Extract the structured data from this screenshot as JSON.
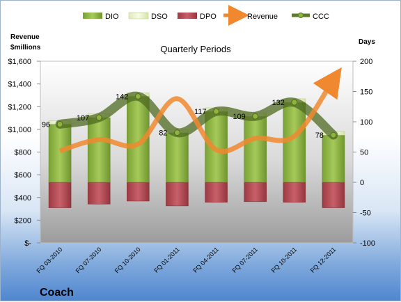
{
  "chart_data": {
    "type": "bar",
    "title": "Quarterly Periods",
    "company": "Coach",
    "y_left_label_line1": "Revenue",
    "y_left_label_line2": "$millions",
    "y_right_label": "Days",
    "y_left_range": [
      0,
      1600
    ],
    "y_right_range": [
      -100,
      200
    ],
    "y_left_ticks": [
      "$-",
      "$200",
      "$400",
      "$600",
      "$800",
      "$1,000",
      "$1,200",
      "$1,400",
      "$1,600"
    ],
    "y_right_ticks": [
      "-100",
      "-50",
      "0",
      "50",
      "100",
      "150",
      "200"
    ],
    "categories": [
      "FQ 03-2010",
      "FQ 07-2010",
      "FQ 10-2010",
      "FQ 01-2011",
      "FQ 04-2011",
      "FQ 07-2011",
      "FQ 10-2011",
      "FQ 12-2011"
    ],
    "series": [
      {
        "name": "DIO",
        "axis": "right",
        "values": [
          96,
          107,
          142,
          82,
          117,
          109,
          132,
          78
        ],
        "color": "#8fb43c"
      },
      {
        "name": "DSO",
        "axis": "right",
        "values": [
          6,
          6,
          6,
          6,
          6,
          6,
          6,
          6
        ],
        "color": "#eef4cf"
      },
      {
        "name": "DPO",
        "axis": "right",
        "values": [
          -42,
          -36,
          -31,
          -39,
          -33,
          -32,
          -33,
          -42
        ],
        "color": "#b5464e"
      },
      {
        "name": "Revenue",
        "axis": "left",
        "values": [
          810,
          910,
          870,
          1270,
          820,
          920,
          940,
          1440
        ],
        "color": "#f0882f"
      },
      {
        "name": "CCC",
        "axis": "right",
        "values": [
          96,
          107,
          142,
          82,
          117,
          109,
          132,
          78
        ],
        "color": "#5e7a2a"
      }
    ],
    "data_labels": [
      "96",
      "107",
      "142",
      "82",
      "117",
      "109",
      "132",
      "78"
    ],
    "legend_position": "top",
    "grid": false
  }
}
